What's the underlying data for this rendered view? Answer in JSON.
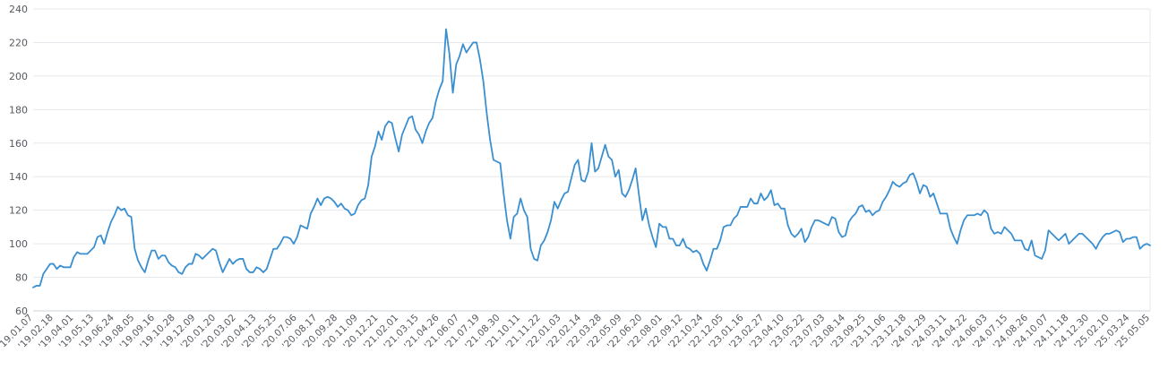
{
  "chart_data": {
    "type": "line",
    "title": "",
    "xlabel": "",
    "ylabel": "",
    "ylim": [
      60,
      240
    ],
    "yticks": [
      60,
      80,
      100,
      120,
      140,
      160,
      180,
      200,
      220,
      240
    ],
    "grid": true,
    "series_color": "#3a8fd0",
    "x_tick_labels": [
      "'19.01.07",
      "'19.02.18",
      "'19.04.01",
      "'19.05.13",
      "'19.06.24",
      "'19.08.05",
      "'19.09.16",
      "'19.10.28",
      "'19.12.09",
      "'20.01.20",
      "'20.03.02",
      "'20.04.13",
      "'20.05.25",
      "'20.07.06",
      "'20.08.17",
      "'20.09.28",
      "'20.11.09",
      "'20.12.21",
      "'21.02.01",
      "'21.03.15",
      "'21.04.26",
      "'21.06.07",
      "'21.07.19",
      "'21.08.30",
      "'21.10.11",
      "'21.11.22",
      "'22.01.03",
      "'22.02.14",
      "'22.03.28",
      "'22.05.09",
      "'22.06.20",
      "'22.08.01",
      "'22.09.12",
      "'22.10.24",
      "'22.12.05",
      "'23.01.16",
      "'23.02.27",
      "'23.04.10",
      "'23.05.22",
      "'23.07.03",
      "'23.08.14",
      "'23.09.25",
      "'23.11.06",
      "'23.12.18",
      "'24.01.29",
      "'24.03.11",
      "'24.04.22",
      "'24.06.03",
      "'24.07.15",
      "'24.08.26",
      "'24.10.07",
      "'24.11.18",
      "'24.12.30",
      "'25.02.10",
      "'25.03.24",
      "'25.05.05"
    ],
    "series": [
      {
        "values": [
          74,
          75,
          75,
          82,
          85,
          88,
          88,
          85,
          87,
          86,
          86,
          86,
          92,
          95,
          94,
          94,
          94,
          96,
          98,
          104,
          105,
          100,
          107,
          113,
          117,
          122,
          120,
          121,
          117,
          116,
          97,
          90,
          86,
          83,
          90,
          96,
          96,
          91,
          93,
          93,
          89,
          87,
          86,
          83,
          82,
          86,
          88,
          88,
          94,
          93,
          91,
          93,
          95,
          97,
          96,
          89,
          83,
          87,
          91,
          88,
          90,
          91,
          91,
          85,
          83,
          83,
          86,
          85,
          83,
          85,
          91,
          97,
          97,
          100,
          104,
          104,
          103,
          100,
          104,
          111,
          110,
          109,
          118,
          122,
          127,
          123,
          127,
          128,
          127,
          125,
          122,
          124,
          121,
          120,
          117,
          118,
          123,
          126,
          127,
          135,
          152,
          158,
          167,
          162,
          170,
          173,
          172,
          163,
          155,
          165,
          170,
          175,
          176,
          168,
          165,
          160,
          167,
          172,
          175,
          185,
          192,
          197,
          228,
          213,
          190,
          207,
          212,
          219,
          214,
          217,
          220,
          220,
          210,
          197,
          178,
          162,
          150,
          149,
          148,
          130,
          114,
          103,
          116,
          118,
          127,
          120,
          116,
          97,
          91,
          90,
          99,
          102,
          107,
          114,
          125,
          121,
          126,
          130,
          131,
          139,
          147,
          150,
          138,
          137,
          143,
          160,
          143,
          145,
          152,
          159,
          152,
          150,
          140,
          144,
          130,
          128,
          132,
          138,
          145,
          129,
          114,
          121,
          111,
          104,
          98,
          112,
          110,
          110,
          103,
          103,
          99,
          99,
          103,
          98,
          97,
          95,
          96,
          94,
          88,
          84,
          90,
          97,
          97,
          102,
          110,
          111,
          111,
          115,
          117,
          122,
          122,
          122,
          127,
          124,
          124,
          130,
          126,
          128,
          132,
          123,
          124,
          121,
          121,
          111,
          106,
          104,
          106,
          109,
          101,
          104,
          110,
          114,
          114,
          113,
          112,
          111,
          116,
          115,
          107,
          104,
          105,
          113,
          116,
          118,
          122,
          123,
          119,
          120,
          117,
          119,
          120,
          125,
          128,
          132,
          137,
          135,
          134,
          136,
          137,
          141,
          142,
          137,
          130,
          135,
          134,
          128,
          130,
          124,
          118,
          118,
          118,
          109,
          104,
          100,
          108,
          114,
          117,
          117,
          117,
          118,
          117,
          120,
          118,
          109,
          106,
          107,
          106,
          110,
          108,
          106,
          102,
          102,
          102,
          97,
          96,
          102,
          93,
          92,
          91,
          96,
          108,
          106,
          104,
          102,
          104,
          106,
          100,
          102,
          104,
          106,
          106,
          104,
          102,
          100,
          97,
          101,
          104,
          106,
          106,
          107,
          108,
          107,
          101,
          103,
          103,
          104,
          104,
          97,
          99,
          100,
          99
        ]
      }
    ]
  }
}
